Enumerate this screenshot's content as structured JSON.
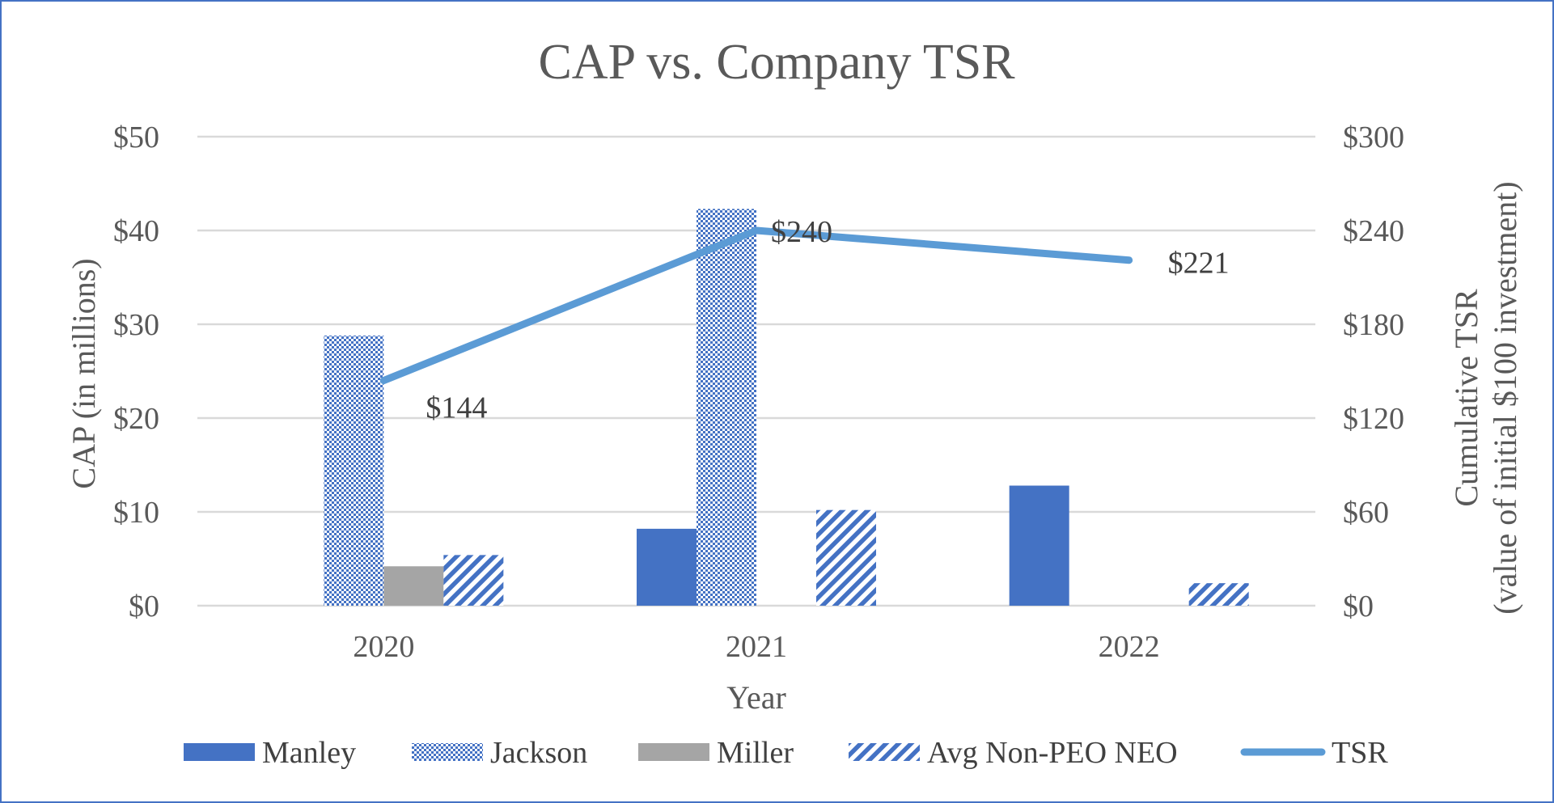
{
  "chart_data": {
    "type": "bar",
    "title": "CAP vs. Company TSR",
    "xlabel": "Year",
    "ylabel": "CAP (in millions)",
    "y2label_line1": "Cumulative TSR",
    "y2label_line2": "(value of initial $100 investment)",
    "categories": [
      "2020",
      "2021",
      "2022"
    ],
    "ylim": [
      0,
      50
    ],
    "y2lim": [
      0,
      300
    ],
    "y_ticks": [
      "$0",
      "$10",
      "$20",
      "$30",
      "$40",
      "$50"
    ],
    "y2_ticks": [
      "$0",
      "$60",
      "$120",
      "$180",
      "$240",
      "$300"
    ],
    "grid": true,
    "legend_position": "bottom",
    "series": [
      {
        "name": "Manley",
        "type": "bar",
        "axis": "left",
        "color": "#4472C4",
        "pattern": "solid",
        "values": [
          null,
          8.2,
          12.8
        ]
      },
      {
        "name": "Jackson",
        "type": "bar",
        "axis": "left",
        "color": "#4472C4",
        "pattern": "dotted",
        "values": [
          28.8,
          42.3,
          null
        ]
      },
      {
        "name": "Miller",
        "type": "bar",
        "axis": "left",
        "color": "#A5A5A5",
        "pattern": "solid",
        "values": [
          4.2,
          null,
          null
        ]
      },
      {
        "name": "Avg Non-PEO NEO",
        "type": "bar",
        "axis": "left",
        "color": "#4472C4",
        "pattern": "diagonal",
        "values": [
          5.4,
          10.2,
          2.4
        ]
      },
      {
        "name": "TSR",
        "type": "line",
        "axis": "right",
        "color": "#5B9BD5",
        "values": [
          144,
          240,
          221
        ],
        "labels": [
          "$144",
          "$240",
          "$221"
        ]
      }
    ]
  }
}
